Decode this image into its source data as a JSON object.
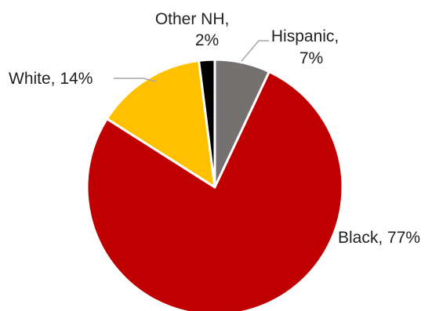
{
  "chart_data": {
    "type": "pie",
    "title": "",
    "slices": [
      {
        "name": "Hispanic",
        "value": 7,
        "color": "#767171",
        "label_lines": [
          "Hispanic,",
          "7%"
        ]
      },
      {
        "name": "Black",
        "value": 77,
        "color": "#c00000",
        "label_lines": [
          "Black, 77%"
        ]
      },
      {
        "name": "White",
        "value": 14,
        "color": "#ffc000",
        "label_lines": [
          "White, 14%"
        ]
      },
      {
        "name": "Other NH",
        "value": 2,
        "color": "#000000",
        "label_lines": [
          "Other NH,",
          "2%"
        ]
      }
    ],
    "start_angle": "12 o'clock",
    "direction": "clockwise",
    "legend": "none",
    "data_labels": "outside"
  }
}
